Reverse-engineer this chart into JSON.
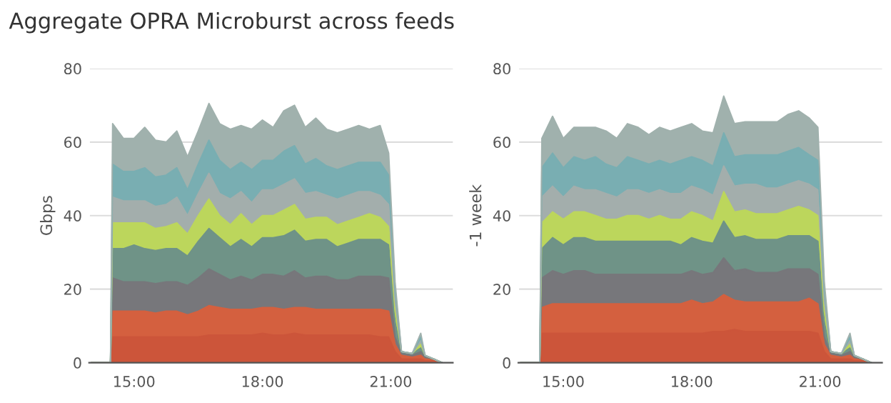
{
  "chart_data": [
    {
      "type": "area",
      "stacked": true,
      "title": "Aggregate OPRA Microburst across feeds",
      "ylabel": "Gbps",
      "xlim": [
        13.95,
        22.45
      ],
      "ylim": [
        0,
        80
      ],
      "yticks": [
        0,
        20,
        40,
        60,
        80
      ],
      "xticks": [
        {
          "value": 15,
          "label": "15:00"
        },
        {
          "value": 18,
          "label": "18:00"
        },
        {
          "value": 21,
          "label": "21:00"
        }
      ],
      "grid": "y",
      "legend": false,
      "x": [
        14.0,
        14.45,
        14.5,
        14.75,
        15.0,
        15.25,
        15.5,
        15.75,
        16.0,
        16.25,
        16.5,
        16.75,
        17.0,
        17.25,
        17.5,
        17.75,
        18.0,
        18.25,
        18.5,
        18.75,
        19.0,
        19.25,
        19.5,
        19.75,
        20.0,
        20.25,
        20.5,
        20.75,
        20.95,
        21.1,
        21.25,
        21.5,
        21.7,
        21.8,
        22.0,
        22.2
      ],
      "series": [
        {
          "color": "#cc553a",
          "values": [
            0,
            0,
            7,
            7,
            7,
            7,
            7,
            7,
            7,
            7,
            7,
            7.5,
            7.5,
            7.5,
            7.5,
            7.5,
            8,
            7.5,
            7.5,
            8,
            7.5,
            7.5,
            7.5,
            7.5,
            7.5,
            7.5,
            7.5,
            7,
            7,
            3,
            1,
            1,
            1,
            0.5,
            0.5,
            0
          ]
        },
        {
          "color": "#d4603f",
          "values": [
            0,
            0,
            7,
            7,
            7,
            7,
            6.5,
            7,
            7,
            6,
            7,
            8,
            7.5,
            7,
            7,
            7,
            7,
            7.5,
            7,
            7,
            7.5,
            7,
            7,
            7,
            7,
            7,
            7,
            7.5,
            7,
            2,
            1,
            0.5,
            1,
            0.5,
            0.5,
            0
          ]
        },
        {
          "color": "#77777b",
          "values": [
            0,
            0,
            9,
            8,
            8,
            8,
            8,
            8,
            8,
            8,
            9,
            10,
            9,
            8,
            9,
            8,
            9,
            9,
            9,
            10,
            8,
            9,
            9,
            8,
            8,
            9,
            9,
            9,
            9,
            2,
            0.5,
            0.5,
            1,
            0.5,
            0,
            0
          ]
        },
        {
          "color": "#6f9387",
          "values": [
            0,
            0,
            8,
            9,
            10,
            9,
            9,
            9,
            9,
            8,
            10,
            11,
            10,
            9,
            10,
            9,
            10,
            10,
            11,
            11,
            10,
            10,
            10,
            9,
            10,
            10,
            10,
            10,
            9,
            4,
            0.5,
            0.5,
            1,
            0.5,
            0,
            0
          ]
        },
        {
          "color": "#bcd65c",
          "values": [
            0,
            0,
            7,
            7,
            6,
            7,
            6,
            6,
            7,
            6,
            7,
            8,
            6,
            6,
            7,
            6,
            6,
            6,
            7,
            7,
            6,
            6,
            6,
            6,
            6,
            6,
            7,
            6,
            5,
            3,
            0,
            0,
            1,
            0,
            0,
            0
          ]
        },
        {
          "color": "#a3aeac",
          "values": [
            0,
            0,
            7,
            6,
            6,
            6,
            6,
            6,
            7,
            5,
            6,
            7,
            6,
            7,
            6,
            6,
            7,
            7,
            7,
            7,
            7,
            7,
            6,
            7,
            7,
            7,
            6,
            6,
            6,
            3,
            0,
            0,
            1,
            0,
            0,
            0
          ]
        },
        {
          "color": "#79aeb2",
          "values": [
            0,
            0,
            9,
            8,
            8,
            9,
            8,
            8,
            8,
            7,
            8,
            9,
            9,
            8,
            8,
            9,
            8,
            8,
            9,
            9,
            8,
            9,
            8,
            8,
            8,
            8,
            8,
            9,
            8,
            3,
            0,
            0,
            1,
            0,
            0,
            0
          ]
        },
        {
          "color": "#a0b1ad",
          "values": [
            0,
            0,
            11,
            9,
            9,
            11,
            10,
            9,
            10,
            9,
            9,
            10,
            10,
            11,
            10,
            11,
            11,
            9,
            11,
            11,
            10,
            11,
            10,
            10,
            10,
            10,
            9,
            10,
            6,
            2,
            0,
            0,
            1,
            0,
            0,
            0
          ]
        }
      ]
    },
    {
      "type": "area",
      "stacked": true,
      "ylabel": "-1 week",
      "xlim": [
        13.95,
        22.45
      ],
      "ylim": [
        0,
        80
      ],
      "yticks": [
        0,
        20,
        40,
        60,
        80
      ],
      "xticks": [
        {
          "value": 15,
          "label": "15:00"
        },
        {
          "value": 18,
          "label": "18:00"
        },
        {
          "value": 21,
          "label": "21:00"
        }
      ],
      "grid": "y",
      "legend": false,
      "x": [
        14.0,
        14.45,
        14.5,
        14.75,
        15.0,
        15.25,
        15.5,
        15.75,
        16.0,
        16.25,
        16.5,
        16.75,
        17.0,
        17.25,
        17.5,
        17.75,
        18.0,
        18.25,
        18.5,
        18.75,
        19.0,
        19.25,
        19.5,
        19.75,
        20.0,
        20.25,
        20.5,
        20.75,
        20.95,
        21.1,
        21.25,
        21.5,
        21.7,
        21.8,
        22.0,
        22.2
      ],
      "series": [
        {
          "color": "#cc553a",
          "values": [
            0,
            0,
            8,
            8,
            8,
            8,
            8,
            8,
            8,
            8,
            8,
            8,
            8,
            8,
            8,
            8,
            8,
            8,
            8.5,
            8.5,
            9,
            8.5,
            8.5,
            8.5,
            8.5,
            8.5,
            8.5,
            8.5,
            8,
            3,
            1,
            1,
            1,
            0.5,
            0.5,
            0
          ]
        },
        {
          "color": "#d4603f",
          "values": [
            0,
            0,
            7,
            8,
            8,
            8,
            8,
            8,
            8,
            8,
            8,
            8,
            8,
            8,
            8,
            8,
            9,
            8,
            8,
            10,
            8,
            8,
            8,
            8,
            8,
            8,
            8,
            9,
            8,
            2,
            1,
            0.5,
            1,
            0.5,
            0.5,
            0
          ]
        },
        {
          "color": "#77777b",
          "values": [
            0,
            0,
            8,
            9,
            8,
            9,
            9,
            8,
            8,
            8,
            8,
            8,
            8,
            8,
            8,
            8,
            8,
            8,
            8,
            10,
            8,
            9,
            8,
            8,
            8,
            9,
            9,
            8,
            8,
            2,
            0.5,
            0.5,
            1,
            0.5,
            0,
            0
          ]
        },
        {
          "color": "#6f9387",
          "values": [
            0,
            0,
            8,
            9,
            8,
            9,
            9,
            9,
            9,
            9,
            9,
            9,
            9,
            9,
            9,
            8,
            9,
            9,
            8,
            10,
            9,
            9,
            9,
            9,
            9,
            9,
            9,
            9,
            9,
            4,
            0.5,
            0.5,
            1,
            0.5,
            0,
            0
          ]
        },
        {
          "color": "#bcd65c",
          "values": [
            0,
            0,
            7,
            7,
            7,
            7,
            7,
            7,
            6,
            6,
            7,
            7,
            6,
            7,
            6,
            7,
            7,
            7,
            6,
            8,
            7,
            7,
            7,
            7,
            7,
            7,
            8,
            7,
            7,
            3,
            0,
            0,
            1,
            0,
            0,
            0
          ]
        },
        {
          "color": "#a3aeac",
          "values": [
            0,
            0,
            7,
            7,
            6,
            7,
            6,
            7,
            7,
            6,
            7,
            7,
            7,
            7,
            7,
            7,
            7,
            7,
            7,
            7,
            7,
            7,
            8,
            7,
            7,
            7,
            7,
            7,
            7,
            3,
            0,
            0,
            1,
            0,
            0,
            0
          ]
        },
        {
          "color": "#79aeb2",
          "values": [
            0,
            0,
            8,
            9,
            8,
            8,
            8,
            9,
            8,
            8,
            9,
            8,
            8,
            8,
            8,
            9,
            8,
            8,
            8,
            9,
            8,
            8,
            8,
            9,
            9,
            9,
            9,
            8,
            8,
            3,
            0,
            0,
            1,
            0,
            0,
            0
          ]
        },
        {
          "color": "#a0b1ad",
          "values": [
            0,
            0,
            8,
            10,
            8,
            8,
            9,
            8,
            9,
            8,
            9,
            9,
            8,
            9,
            9,
            9,
            9,
            8,
            9,
            10,
            9,
            9,
            9,
            9,
            9,
            10,
            10,
            10,
            9,
            2,
            0,
            0,
            1,
            0,
            0,
            0
          ]
        }
      ]
    }
  ]
}
